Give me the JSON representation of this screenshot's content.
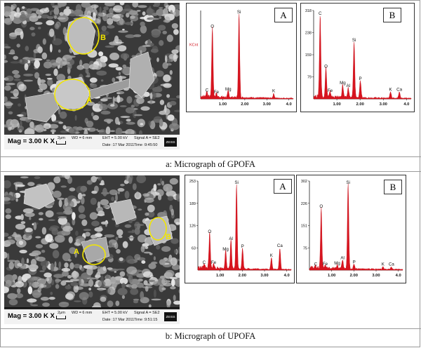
{
  "captions": {
    "a": "a: Micrograph of GPOFA",
    "b": "b: Micrograph of UPOFA"
  },
  "sem_a": {
    "mag": "Mag =    3.00 K X",
    "scale": "2μm",
    "wd": "WD =   6 mm",
    "eht": "EHT = 5.00 kV",
    "signal": "Signal A = SE2",
    "date": "Date :17 Mar 2011",
    "time": "Time :9:45:50",
    "logo": "ZEISS",
    "labels": [
      "B",
      "A"
    ]
  },
  "sem_b": {
    "mag": "Mag =    3.00 K X",
    "scale": "2μm",
    "wd": "WD =   6 mm",
    "eht": "EHT = 5.00 kV",
    "signal": "Signal A = SE2",
    "date": "Date :17 Mar 2011",
    "time": "Time :9:51:15",
    "logo": "ZEISS",
    "labels": [
      "A",
      "B"
    ]
  },
  "chart_data": [
    {
      "type": "line",
      "panel": "A",
      "ylabel": "KCnt",
      "xlim": [
        0,
        4.2
      ],
      "ylim": [
        0,
        1
      ],
      "xticks": [
        "1.00",
        "2.00",
        "3.00",
        "4.0"
      ],
      "yticks": [],
      "peaks": [
        {
          "el": "C",
          "x": 0.28,
          "y": 0.06
        },
        {
          "el": "O",
          "x": 0.53,
          "y": 0.78
        },
        {
          "el": "Fe",
          "x": 0.71,
          "y": 0.04
        },
        {
          "el": "Mg",
          "x": 1.25,
          "y": 0.07
        },
        {
          "el": "Si",
          "x": 1.74,
          "y": 0.95
        },
        {
          "el": "K",
          "x": 3.31,
          "y": 0.05
        }
      ]
    },
    {
      "type": "line",
      "panel": "B",
      "ylabel": "",
      "xlim": [
        0,
        4.2
      ],
      "ylim": [
        0,
        318
      ],
      "xticks": [
        "1.00",
        "2.00",
        "3.00",
        "4.0"
      ],
      "yticks": [
        "318",
        "238",
        "159",
        "79"
      ],
      "peaks": [
        {
          "el": "C",
          "x": 0.28,
          "y": 295
        },
        {
          "el": "O",
          "x": 0.53,
          "y": 105
        },
        {
          "el": "Fe",
          "x": 0.71,
          "y": 18
        },
        {
          "el": "Mg",
          "x": 1.25,
          "y": 45
        },
        {
          "el": "Al",
          "x": 1.49,
          "y": 35
        },
        {
          "el": "Si",
          "x": 1.74,
          "y": 200
        },
        {
          "el": "P",
          "x": 2.01,
          "y": 60
        },
        {
          "el": "K",
          "x": 3.31,
          "y": 22
        },
        {
          "el": "Ca",
          "x": 3.69,
          "y": 22
        }
      ]
    },
    {
      "type": "line",
      "panel": "A",
      "ylabel": "",
      "xlim": [
        0,
        4.2
      ],
      "ylim": [
        0,
        253
      ],
      "xticks": [
        "1.00",
        "2.00",
        "3.00",
        "4.0"
      ],
      "yticks": [
        "253",
        "189",
        "126",
        "63"
      ],
      "peaks": [
        {
          "el": "C",
          "x": 0.28,
          "y": 12
        },
        {
          "el": "O",
          "x": 0.53,
          "y": 100
        },
        {
          "el": "Fe",
          "x": 0.71,
          "y": 12
        },
        {
          "el": "Mg",
          "x": 1.25,
          "y": 50
        },
        {
          "el": "Al",
          "x": 1.49,
          "y": 80
        },
        {
          "el": "Si",
          "x": 1.74,
          "y": 240
        },
        {
          "el": "P",
          "x": 2.01,
          "y": 58
        },
        {
          "el": "K",
          "x": 3.31,
          "y": 32
        },
        {
          "el": "Ca",
          "x": 3.69,
          "y": 60
        }
      ]
    },
    {
      "type": "line",
      "panel": "B",
      "ylabel": "",
      "xlim": [
        0,
        4.2
      ],
      "ylim": [
        0,
        302
      ],
      "xticks": [
        "1.00",
        "2.00",
        "3.00",
        "4.0"
      ],
      "yticks": [
        "302",
        "226",
        "151",
        "75"
      ],
      "peaks": [
        {
          "el": "C",
          "x": 0.28,
          "y": 8
        },
        {
          "el": "O",
          "x": 0.53,
          "y": 205
        },
        {
          "el": "Fe",
          "x": 0.71,
          "y": 10
        },
        {
          "el": "Mg",
          "x": 1.25,
          "y": 12
        },
        {
          "el": "Al",
          "x": 1.49,
          "y": 30
        },
        {
          "el": "Si",
          "x": 1.74,
          "y": 290
        },
        {
          "el": "P",
          "x": 2.01,
          "y": 15
        },
        {
          "el": "K",
          "x": 3.31,
          "y": 8
        },
        {
          "el": "Ca",
          "x": 3.69,
          "y": 8
        }
      ]
    }
  ]
}
